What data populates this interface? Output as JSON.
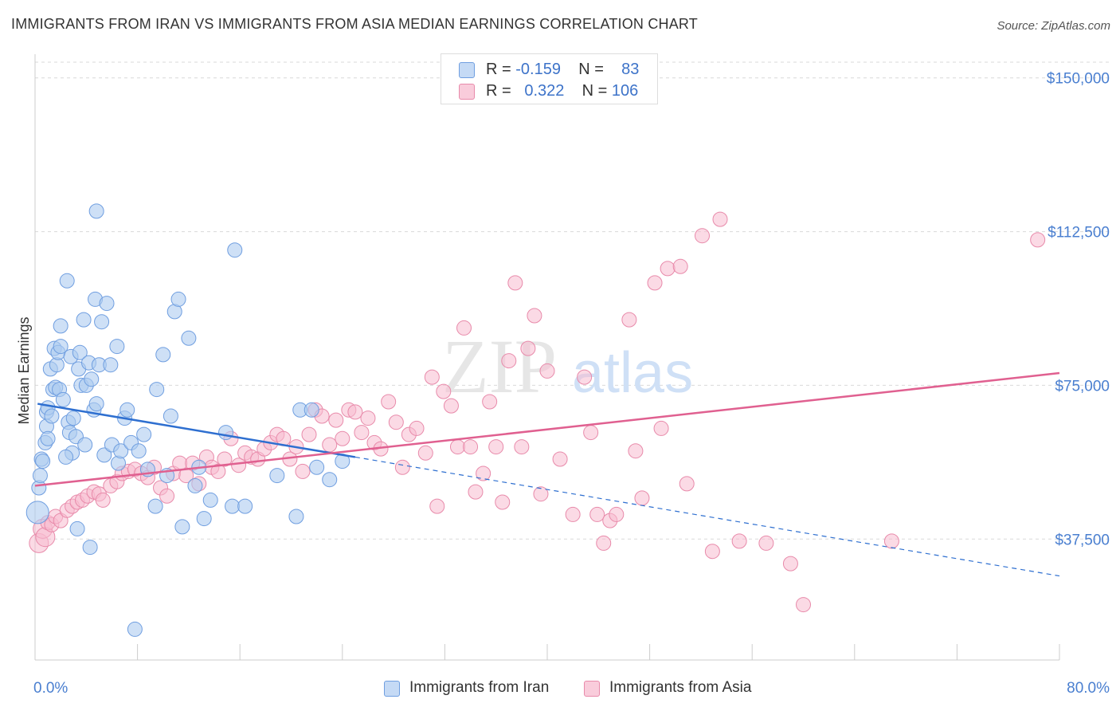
{
  "title": "IMMIGRANTS FROM IRAN VS IMMIGRANTS FROM ASIA MEDIAN EARNINGS CORRELATION CHART",
  "source": "Source: ZipAtlas.com",
  "watermark": {
    "zip": "ZIP",
    "atlas": "atlas"
  },
  "legend": {
    "iran": {
      "r_label": "R = ",
      "r_value": "-0.159",
      "n_label": "N = ",
      "n_value": "83"
    },
    "asia": {
      "r_label": "R = ",
      "r_value": "0.322",
      "n_label": "N = ",
      "n_value": "106"
    }
  },
  "bottom_legend": {
    "iran": "Immigrants from Iran",
    "asia": "Immigrants from Asia"
  },
  "colors": {
    "iran_fill": "#aecbf0",
    "iran_stroke": "#6f9ee0",
    "iran_line": "#2e6fd0",
    "asia_fill": "#f7bcd0",
    "asia_stroke": "#e88aaa",
    "asia_line": "#e06090",
    "tick_label": "#4a7fd0",
    "grid": "#d9d9d9"
  },
  "chart_data": {
    "type": "scatter",
    "title": "IMMIGRANTS FROM IRAN VS IMMIGRANTS FROM ASIA MEDIAN EARNINGS CORRELATION CHART",
    "xlabel": "",
    "ylabel": "Median Earnings",
    "xlim": [
      0,
      80
    ],
    "ylim": [
      8000,
      155000
    ],
    "x_tick_labels": [
      "0.0%",
      "80.0%"
    ],
    "y_ticks": [
      37500,
      75000,
      112500,
      150000
    ],
    "y_tick_labels": [
      "$37,500",
      "$75,000",
      "$112,500",
      "$150,000"
    ],
    "grid": true,
    "legend_position": "top-center",
    "series": [
      {
        "name": "Immigrants from Iran",
        "r": -0.159,
        "n": 83,
        "trend": {
          "x0": 0.2,
          "y0": 70500,
          "x_solid_end": 25,
          "y_solid_end": 57500,
          "x1": 80,
          "y1": 28500
        },
        "points": [
          [
            0.2,
            44000
          ],
          [
            0.3,
            50000
          ],
          [
            0.4,
            53000
          ],
          [
            0.5,
            57000
          ],
          [
            0.6,
            56500
          ],
          [
            0.8,
            61000
          ],
          [
            0.9,
            65000
          ],
          [
            0.9,
            68500
          ],
          [
            1.0,
            69500
          ],
          [
            1.0,
            62000
          ],
          [
            1.2,
            79000
          ],
          [
            1.4,
            74000
          ],
          [
            1.5,
            84000
          ],
          [
            1.6,
            74500
          ],
          [
            1.7,
            80000
          ],
          [
            1.8,
            83000
          ],
          [
            1.9,
            74000
          ],
          [
            2.0,
            84500
          ],
          [
            2.0,
            89500
          ],
          [
            2.2,
            71500
          ],
          [
            2.5,
            100500
          ],
          [
            2.6,
            66000
          ],
          [
            2.7,
            63500
          ],
          [
            2.8,
            82000
          ],
          [
            2.9,
            58500
          ],
          [
            3.0,
            67000
          ],
          [
            3.2,
            62500
          ],
          [
            3.4,
            79000
          ],
          [
            3.5,
            83000
          ],
          [
            3.6,
            75000
          ],
          [
            3.8,
            91000
          ],
          [
            3.9,
            60500
          ],
          [
            4.0,
            75000
          ],
          [
            4.2,
            80500
          ],
          [
            4.3,
            35500
          ],
          [
            4.4,
            76500
          ],
          [
            4.6,
            69000
          ],
          [
            4.7,
            96000
          ],
          [
            4.8,
            117500
          ],
          [
            4.8,
            70500
          ],
          [
            5.0,
            80000
          ],
          [
            5.2,
            90500
          ],
          [
            5.4,
            58000
          ],
          [
            5.6,
            95000
          ],
          [
            5.9,
            80000
          ],
          [
            6.0,
            60500
          ],
          [
            6.4,
            84500
          ],
          [
            6.5,
            56000
          ],
          [
            6.7,
            59000
          ],
          [
            7.0,
            67000
          ],
          [
            7.2,
            69000
          ],
          [
            7.5,
            61000
          ],
          [
            7.8,
            15500
          ],
          [
            8.1,
            59000
          ],
          [
            8.5,
            63000
          ],
          [
            8.8,
            54500
          ],
          [
            9.4,
            45500
          ],
          [
            9.5,
            74000
          ],
          [
            10.0,
            82500
          ],
          [
            10.3,
            53000
          ],
          [
            10.6,
            67500
          ],
          [
            10.9,
            93000
          ],
          [
            11.2,
            96000
          ],
          [
            11.5,
            40500
          ],
          [
            12.0,
            86500
          ],
          [
            12.5,
            50500
          ],
          [
            12.8,
            55000
          ],
          [
            13.2,
            42500
          ],
          [
            13.7,
            47000
          ],
          [
            14.9,
            63500
          ],
          [
            15.4,
            45500
          ],
          [
            15.6,
            108000
          ],
          [
            16.4,
            45500
          ],
          [
            18.9,
            53000
          ],
          [
            20.4,
            43000
          ],
          [
            20.7,
            69000
          ],
          [
            21.6,
            69000
          ],
          [
            22.0,
            55000
          ],
          [
            23.0,
            52000
          ],
          [
            24.0,
            56500
          ],
          [
            3.3,
            40000
          ],
          [
            2.4,
            57500
          ],
          [
            1.3,
            67500
          ]
        ]
      },
      {
        "name": "Immigrants from Asia",
        "r": 0.322,
        "n": 106,
        "trend": {
          "x0": 0,
          "y0": 50500,
          "x1": 80,
          "y1": 78000
        },
        "points": [
          [
            0.3,
            36500
          ],
          [
            0.6,
            40000
          ],
          [
            0.8,
            38000
          ],
          [
            1.0,
            41500
          ],
          [
            1.3,
            41000
          ],
          [
            1.6,
            43000
          ],
          [
            2.0,
            42000
          ],
          [
            2.5,
            44500
          ],
          [
            2.9,
            45500
          ],
          [
            3.3,
            46500
          ],
          [
            3.7,
            47000
          ],
          [
            4.1,
            48000
          ],
          [
            4.6,
            49000
          ],
          [
            5.0,
            48500
          ],
          [
            5.3,
            47000
          ],
          [
            5.9,
            50500
          ],
          [
            6.4,
            51500
          ],
          [
            6.8,
            53500
          ],
          [
            7.3,
            54000
          ],
          [
            7.8,
            54500
          ],
          [
            8.3,
            53500
          ],
          [
            8.8,
            52500
          ],
          [
            9.3,
            55000
          ],
          [
            9.8,
            50000
          ],
          [
            10.3,
            48000
          ],
          [
            10.8,
            53500
          ],
          [
            11.3,
            56000
          ],
          [
            11.8,
            53000
          ],
          [
            12.3,
            56000
          ],
          [
            12.8,
            51000
          ],
          [
            13.4,
            57500
          ],
          [
            13.8,
            55000
          ],
          [
            14.3,
            54000
          ],
          [
            14.8,
            57000
          ],
          [
            15.3,
            62000
          ],
          [
            15.9,
            55500
          ],
          [
            16.4,
            58500
          ],
          [
            16.9,
            57500
          ],
          [
            17.4,
            57000
          ],
          [
            17.9,
            59500
          ],
          [
            18.4,
            61000
          ],
          [
            18.9,
            63000
          ],
          [
            19.4,
            62000
          ],
          [
            19.9,
            57000
          ],
          [
            20.4,
            60000
          ],
          [
            20.9,
            54000
          ],
          [
            21.4,
            63000
          ],
          [
            21.9,
            69000
          ],
          [
            22.4,
            67500
          ],
          [
            23.0,
            60500
          ],
          [
            23.5,
            66500
          ],
          [
            24.0,
            62000
          ],
          [
            24.5,
            69000
          ],
          [
            25.0,
            68500
          ],
          [
            25.5,
            63500
          ],
          [
            26.0,
            67000
          ],
          [
            26.5,
            61000
          ],
          [
            27.0,
            59500
          ],
          [
            27.6,
            71000
          ],
          [
            28.2,
            66000
          ],
          [
            28.7,
            55000
          ],
          [
            29.2,
            63000
          ],
          [
            29.8,
            64500
          ],
          [
            30.5,
            58500
          ],
          [
            31.0,
            77000
          ],
          [
            31.4,
            45500
          ],
          [
            31.9,
            73500
          ],
          [
            32.5,
            70000
          ],
          [
            33.0,
            60000
          ],
          [
            33.5,
            89000
          ],
          [
            34.0,
            60000
          ],
          [
            34.4,
            49000
          ],
          [
            35.0,
            53500
          ],
          [
            35.5,
            71000
          ],
          [
            36.0,
            60000
          ],
          [
            36.5,
            46500
          ],
          [
            37.0,
            81000
          ],
          [
            37.5,
            100000
          ],
          [
            38.0,
            60000
          ],
          [
            38.5,
            84000
          ],
          [
            39.0,
            92000
          ],
          [
            39.5,
            48500
          ],
          [
            40.0,
            78500
          ],
          [
            41.0,
            57000
          ],
          [
            42.0,
            43500
          ],
          [
            42.9,
            77000
          ],
          [
            43.4,
            63500
          ],
          [
            43.9,
            43500
          ],
          [
            44.4,
            36500
          ],
          [
            44.9,
            42000
          ],
          [
            45.4,
            43500
          ],
          [
            46.4,
            91000
          ],
          [
            46.9,
            59000
          ],
          [
            47.4,
            47500
          ],
          [
            48.4,
            100000
          ],
          [
            48.9,
            64500
          ],
          [
            49.4,
            103500
          ],
          [
            50.4,
            104000
          ],
          [
            50.9,
            51000
          ],
          [
            52.1,
            111500
          ],
          [
            52.9,
            34500
          ],
          [
            53.5,
            115500
          ],
          [
            55.0,
            37000
          ],
          [
            57.1,
            36500
          ],
          [
            59.0,
            31500
          ],
          [
            60.0,
            21500
          ],
          [
            66.9,
            37000
          ],
          [
            78.3,
            110500
          ]
        ]
      }
    ]
  }
}
